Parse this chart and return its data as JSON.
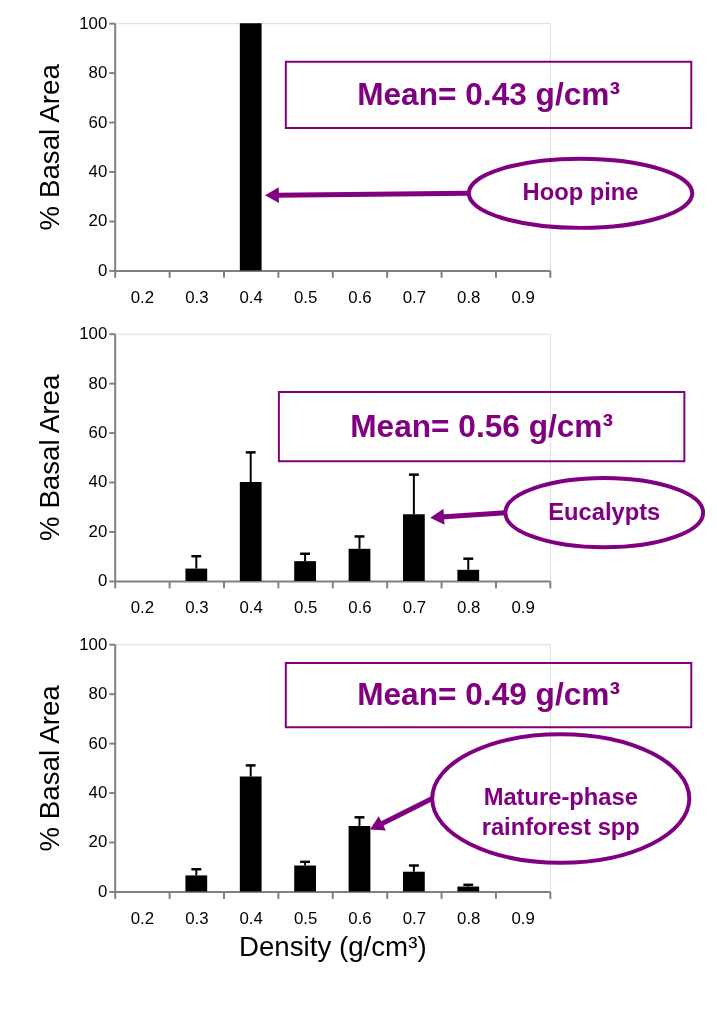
{
  "chart_data": [
    {
      "type": "bar",
      "ylabel": "% Basal Area",
      "categories": [
        "0.2",
        "0.3",
        "0.4",
        "0.5",
        "0.6",
        "0.7",
        "0.8",
        "0.9"
      ],
      "color": "#000000",
      "values": [
        null,
        null,
        100,
        null,
        null,
        null,
        null,
        null
      ],
      "ylim": [
        0,
        100
      ],
      "yticks": [
        0,
        20,
        40,
        60,
        80,
        100
      ],
      "annotations": [
        "Mean= 0.43 g/cm³",
        "Hoop pine"
      ]
    },
    {
      "type": "bar",
      "ylabel": "% Basal Area",
      "categories": [
        "0.2",
        "0.3",
        "0.4",
        "0.5",
        "0.6",
        "0.7",
        "0.8",
        "0.9"
      ],
      "color": "#000000",
      "values": [
        null,
        5,
        40,
        8,
        13,
        27,
        4.5,
        null
      ],
      "errors": [
        null,
        [
          5,
          10
        ],
        [
          40,
          52
        ],
        [
          8,
          11
        ],
        [
          13,
          18
        ],
        [
          27,
          43
        ],
        [
          4.5,
          9
        ],
        null
      ],
      "ylim": [
        0,
        100
      ],
      "yticks": [
        0,
        20,
        40,
        60,
        80,
        100
      ],
      "annotations": [
        "Mean= 0.56 g/cm³",
        "Eucalypts"
      ]
    },
    {
      "type": "bar",
      "ylabel": "% Basal Area",
      "xlabel": "Density (g/cm³)",
      "categories": [
        "0.2",
        "0.3",
        "0.4",
        "0.5",
        "0.6",
        "0.7",
        "0.8",
        "0.9"
      ],
      "color": "#000000",
      "values": [
        null,
        6.5,
        46.5,
        10.5,
        26.5,
        8,
        2,
        null
      ],
      "errors": [
        null,
        [
          6.5,
          9
        ],
        [
          46.5,
          51
        ],
        [
          10.5,
          12
        ],
        [
          26.5,
          30
        ],
        [
          8,
          10.5
        ],
        [
          2,
          2.7
        ],
        null
      ],
      "ylim": [
        0,
        100
      ],
      "yticks": [
        0,
        20,
        40,
        60,
        80,
        100
      ],
      "annotations": [
        "Mean= 0.49 g/cm³",
        "Mature-phase\nrainforest spp"
      ]
    }
  ]
}
